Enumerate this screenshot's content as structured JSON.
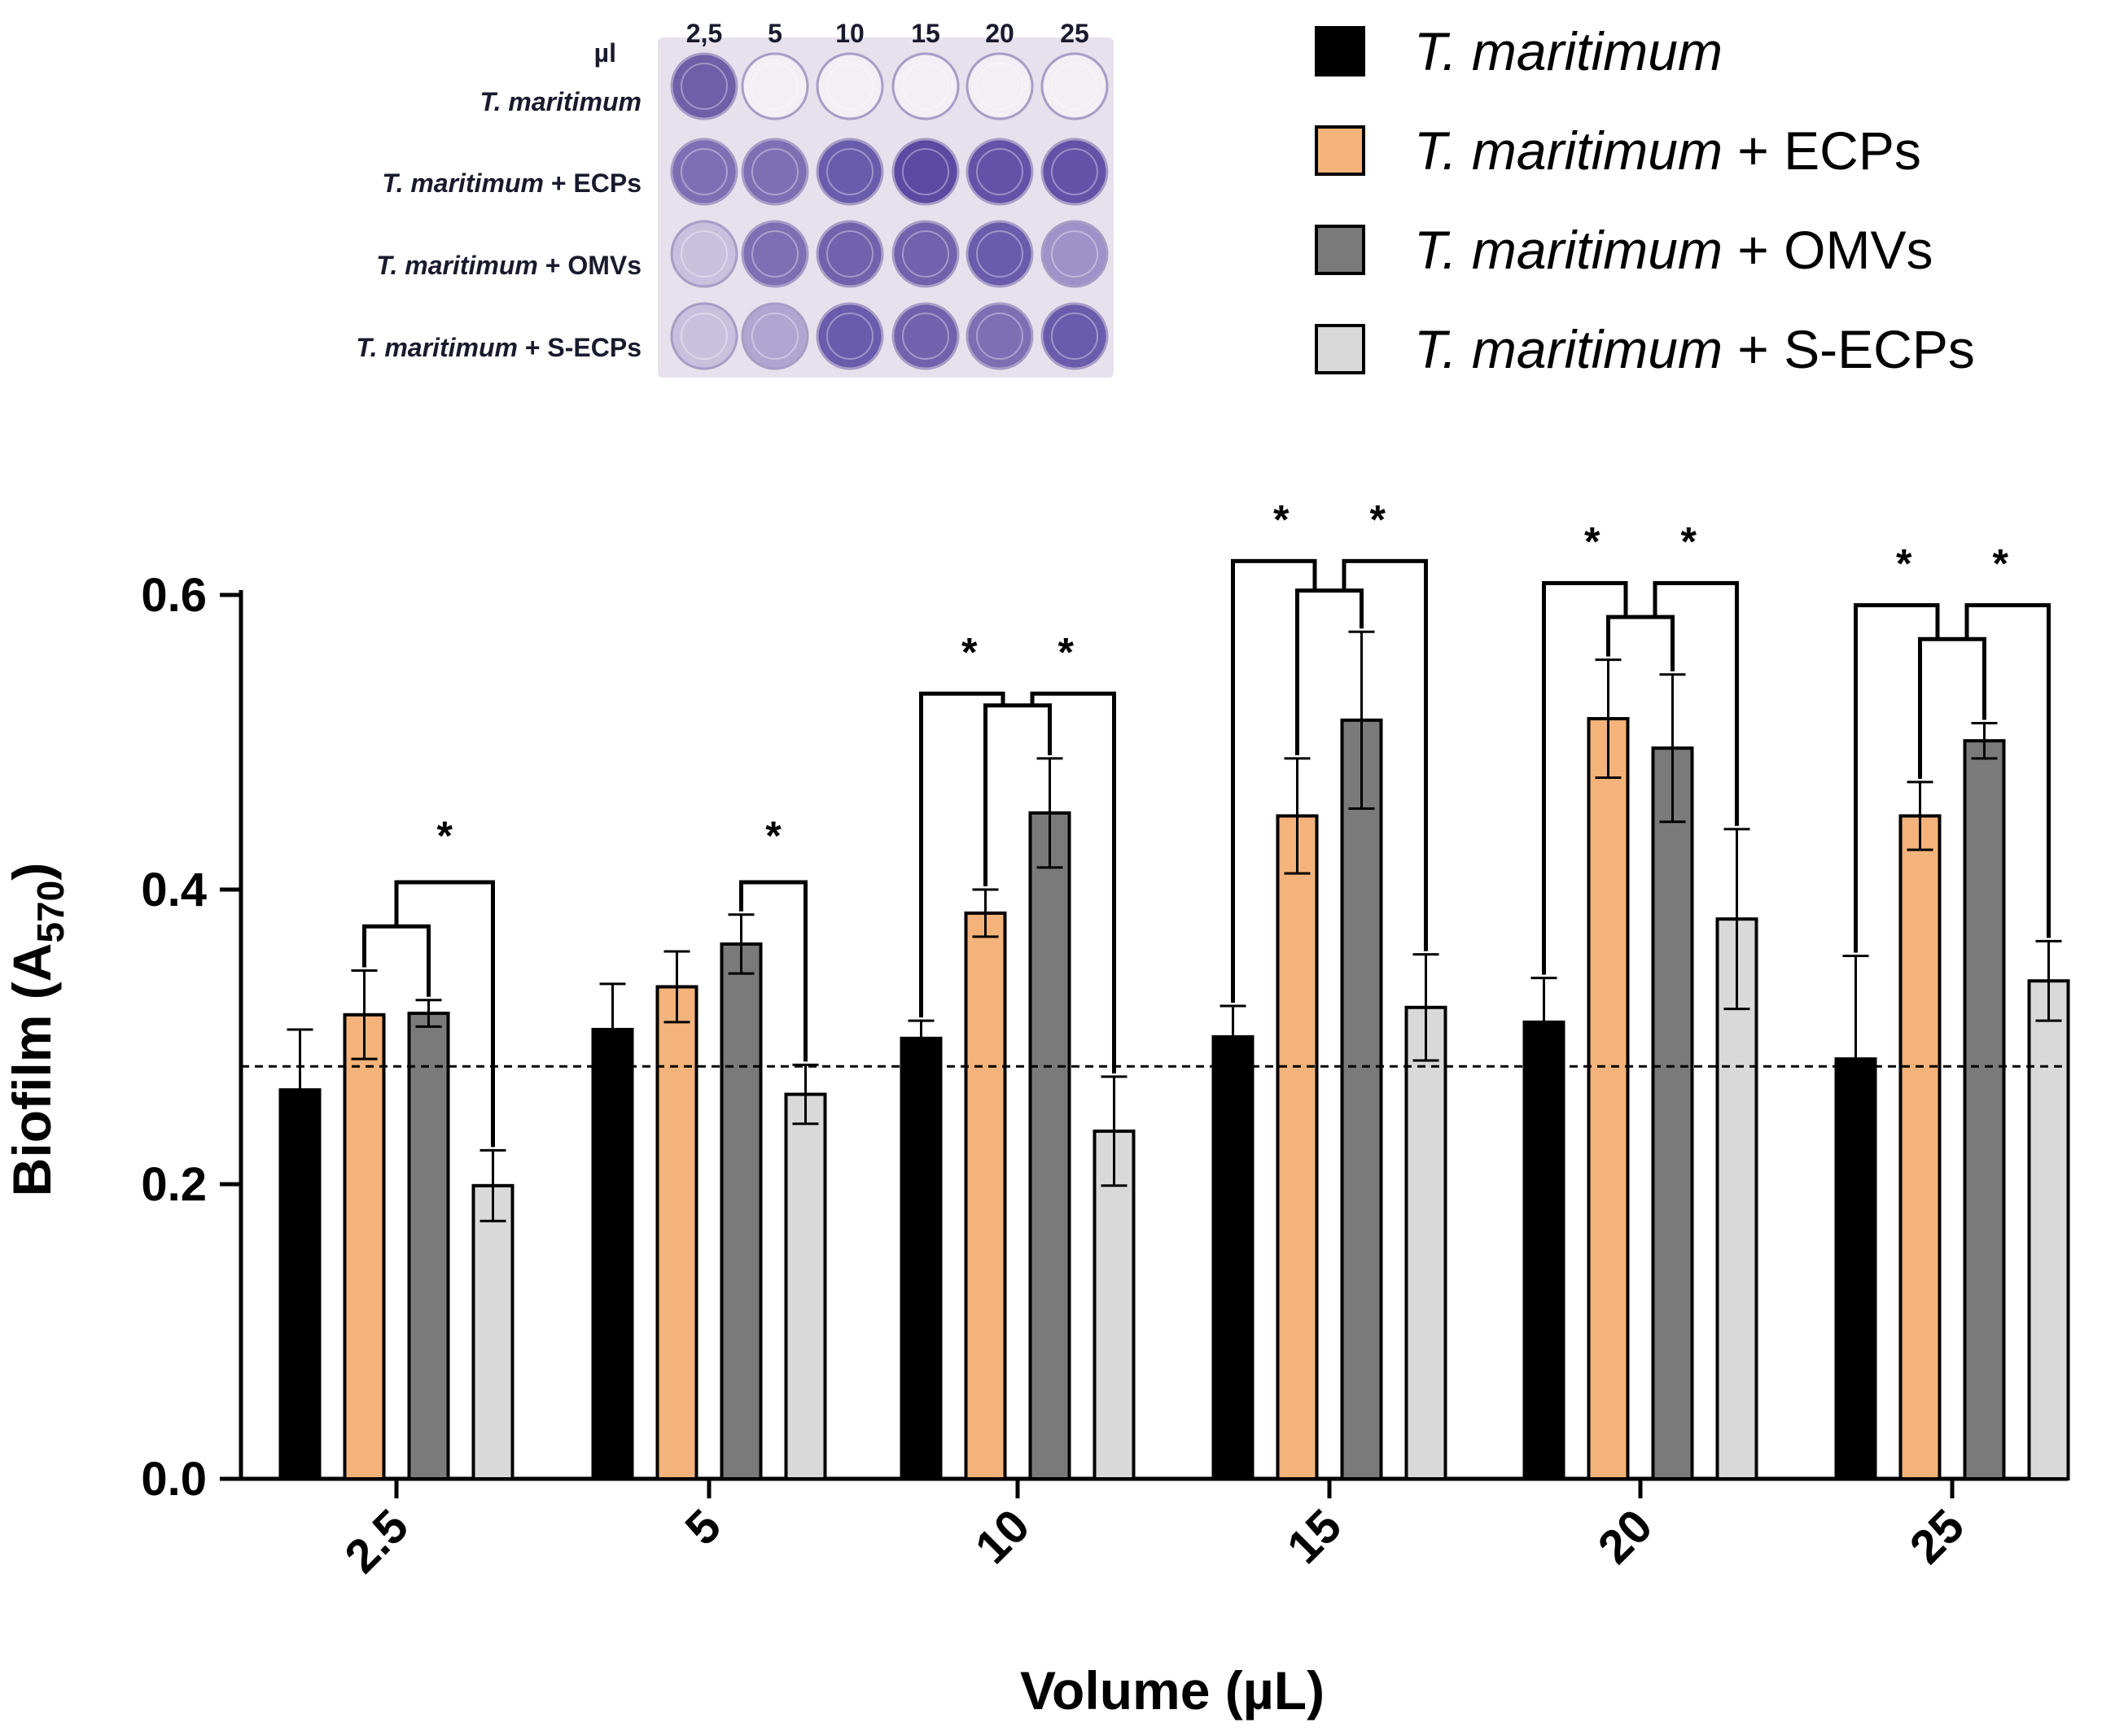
{
  "chart_data": {
    "type": "bar",
    "title": "",
    "xlabel": "Volume (µL)",
    "ylabel": "Biofilm (A",
    "ylabel_sub": "570",
    "ylabel_close": ")",
    "ylim": [
      0,
      0.6
    ],
    "yticks": [
      "0.0",
      "0.2",
      "0.4",
      "0.6"
    ],
    "baseline": 0.28,
    "categories": [
      "2.5",
      "5",
      "10",
      "15",
      "20",
      "25"
    ],
    "series": [
      {
        "name": "T. maritimum",
        "suffix": "",
        "color": "#000000",
        "values": [
          0.264,
          0.305,
          0.299,
          0.3,
          0.31,
          0.285
        ],
        "errors": [
          0.041,
          0.031,
          0.012,
          0.021,
          0.03,
          0.07
        ]
      },
      {
        "name": "T. maritimum",
        "suffix": " + ECPs",
        "color": "#f3b37a",
        "values": [
          0.315,
          0.334,
          0.384,
          0.45,
          0.516,
          0.45
        ],
        "errors": [
          0.03,
          0.024,
          0.016,
          0.039,
          0.04,
          0.023
        ]
      },
      {
        "name": "T. maritimum",
        "suffix": " + OMVs",
        "color": "#7a7a7a",
        "values": [
          0.316,
          0.363,
          0.452,
          0.515,
          0.496,
          0.501
        ],
        "errors": [
          0.009,
          0.02,
          0.037,
          0.06,
          0.05,
          0.012
        ]
      },
      {
        "name": "T. maritimum",
        "suffix": " + S-ECPs",
        "color": "#d9d9d9",
        "values": [
          0.199,
          0.261,
          0.236,
          0.32,
          0.38,
          0.338
        ],
        "errors": [
          0.024,
          0.02,
          0.037,
          0.036,
          0.061,
          0.027
        ]
      }
    ],
    "significance_marker": "*",
    "legend_position": "top-right"
  },
  "plate_image": {
    "volume_header": "µl",
    "volumes": [
      "2,5",
      "5",
      "10",
      "15",
      "20",
      "25"
    ],
    "rows": [
      {
        "name": "T. maritimum",
        "suffix": ""
      },
      {
        "name": "T. maritimum",
        "suffix": " + ECPs"
      },
      {
        "name": "T. maritimum",
        "suffix": " + OMVs"
      },
      {
        "name": "T. maritimum",
        "suffix": " + S-ECPs"
      }
    ]
  }
}
